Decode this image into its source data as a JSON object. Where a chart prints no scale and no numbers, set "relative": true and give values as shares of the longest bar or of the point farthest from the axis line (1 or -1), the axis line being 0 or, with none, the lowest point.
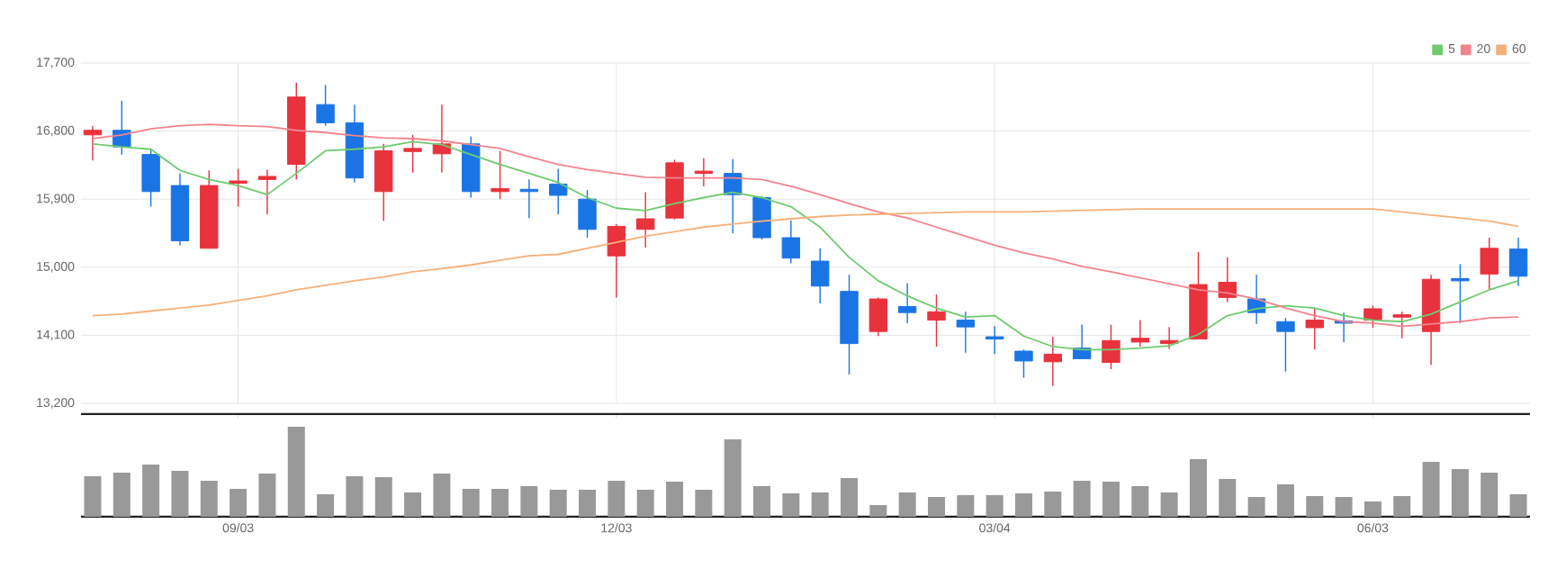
{
  "chart_data": [
    {
      "type": "candlestick",
      "ohlc": [
        [
          16750,
          16870,
          16410,
          16810
        ],
        [
          16810,
          17200,
          16490,
          16590
        ],
        [
          16490,
          16560,
          15800,
          16000
        ],
        [
          16080,
          16240,
          15290,
          15350
        ],
        [
          15250,
          16280,
          15250,
          16080
        ],
        [
          16110,
          16300,
          15800,
          16140
        ],
        [
          16160,
          16290,
          15700,
          16200
        ],
        [
          16360,
          17440,
          16160,
          17250
        ],
        [
          17150,
          17410,
          16870,
          16910
        ],
        [
          16910,
          17150,
          16120,
          16180
        ],
        [
          16000,
          16630,
          15610,
          16540
        ],
        [
          16530,
          16750,
          16250,
          16570
        ],
        [
          16500,
          17150,
          16250,
          16630
        ],
        [
          16630,
          16730,
          15920,
          16000
        ],
        [
          16000,
          16540,
          15900,
          16040
        ],
        [
          16030,
          16160,
          15650,
          16000
        ],
        [
          16100,
          16300,
          15700,
          15950
        ],
        [
          15900,
          16020,
          15390,
          15500
        ],
        [
          15150,
          15570,
          14600,
          15540
        ],
        [
          15500,
          15990,
          15260,
          15640
        ],
        [
          15650,
          16420,
          15630,
          16380
        ],
        [
          16240,
          16440,
          16070,
          16270
        ],
        [
          16240,
          16430,
          15450,
          15960
        ],
        [
          15920,
          15940,
          15370,
          15390
        ],
        [
          15390,
          15620,
          15050,
          15120
        ],
        [
          15080,
          15250,
          14520,
          14750
        ],
        [
          14680,
          14900,
          13580,
          13990
        ],
        [
          14150,
          14600,
          14090,
          14580
        ],
        [
          14480,
          14790,
          14260,
          14400
        ],
        [
          14300,
          14640,
          13950,
          14410
        ],
        [
          14300,
          14410,
          13870,
          14210
        ],
        [
          14080,
          14220,
          13850,
          14050
        ],
        [
          13890,
          13910,
          13540,
          13760
        ],
        [
          13750,
          14080,
          13430,
          13850
        ],
        [
          13930,
          14240,
          13790,
          13790
        ],
        [
          13740,
          14240,
          13650,
          14030
        ],
        [
          14010,
          14300,
          13950,
          14060
        ],
        [
          13990,
          14210,
          13920,
          14030
        ],
        [
          14050,
          15200,
          14050,
          14770
        ],
        [
          14600,
          15130,
          14540,
          14800
        ],
        [
          14580,
          14900,
          14250,
          14400
        ],
        [
          14280,
          14330,
          13620,
          14150
        ],
        [
          14200,
          14450,
          13910,
          14300
        ],
        [
          14290,
          14400,
          14010,
          14260
        ],
        [
          14300,
          14490,
          14200,
          14450
        ],
        [
          14340,
          14410,
          14060,
          14370
        ],
        [
          14150,
          14900,
          13710,
          14840
        ],
        [
          14850,
          15040,
          14260,
          14820
        ],
        [
          14910,
          15390,
          14700,
          15250
        ],
        [
          15240,
          15390,
          14750,
          14880
        ]
      ],
      "colors": [
        "#e8323c",
        "#1b74e4",
        "#1b74e4",
        "#1b74e4",
        "#e8323c",
        "#e8323c",
        "#e8323c",
        "#e8323c",
        "#1b74e4",
        "#1b74e4",
        "#e8323c",
        "#e8323c",
        "#e8323c",
        "#1b74e4",
        "#e8323c",
        "#1b74e4",
        "#1b74e4",
        "#1b74e4",
        "#e8323c",
        "#e8323c",
        "#e8323c",
        "#e8323c",
        "#1b74e4",
        "#1b74e4",
        "#1b74e4",
        "#1b74e4",
        "#1b74e4",
        "#e8323c",
        "#1b74e4",
        "#e8323c",
        "#1b74e4",
        "#1b74e4",
        "#1b74e4",
        "#e8323c",
        "#1b74e4",
        "#e8323c",
        "#e8323c",
        "#e8323c",
        "#e8323c",
        "#e8323c",
        "#1b74e4",
        "#1b74e4",
        "#e8323c",
        "#1b74e4",
        "#e8323c",
        "#e8323c",
        "#e8323c",
        "#1b74e4",
        "#e8323c",
        "#1b74e4"
      ],
      "series": [
        {
          "type": "line",
          "name": "5",
          "color": "#6fcb6f",
          "values": [
            16630,
            16590,
            16560,
            16280,
            16160,
            16080,
            15960,
            16240,
            16540,
            16560,
            16590,
            16660,
            16620,
            16490,
            16360,
            16240,
            16120,
            15920,
            15780,
            15750,
            15840,
            15920,
            15990,
            15920,
            15800,
            15530,
            15130,
            14820,
            14620,
            14460,
            14340,
            14360,
            14090,
            13950,
            13910,
            13910,
            13930,
            13960,
            14110,
            14360,
            14450,
            14490,
            14460,
            14360,
            14300,
            14280,
            14380,
            14540,
            14700,
            14820
          ]
        },
        {
          "type": "line",
          "name": "20",
          "color": "#f2848e",
          "values": [
            16700,
            16750,
            16830,
            16870,
            16890,
            16870,
            16860,
            16810,
            16780,
            16740,
            16710,
            16700,
            16670,
            16620,
            16570,
            16460,
            16360,
            16290,
            16240,
            16190,
            16180,
            16180,
            16180,
            16160,
            16070,
            15960,
            15840,
            15730,
            15650,
            15530,
            15410,
            15290,
            15190,
            15110,
            15010,
            14940,
            14860,
            14780,
            14700,
            14660,
            14580,
            14460,
            14360,
            14280,
            14260,
            14220,
            14250,
            14280,
            14330,
            14340
          ]
        },
        {
          "type": "line",
          "name": "60",
          "color": "#f6b07a",
          "values": [
            14360,
            14380,
            14420,
            14460,
            14500,
            14560,
            14620,
            14700,
            14760,
            14820,
            14870,
            14940,
            14980,
            15030,
            15090,
            15150,
            15170,
            15250,
            15330,
            15410,
            15470,
            15530,
            15570,
            15610,
            15640,
            15670,
            15690,
            15700,
            15710,
            15720,
            15730,
            15730,
            15730,
            15740,
            15750,
            15760,
            15770,
            15770,
            15770,
            15770,
            15770,
            15770,
            15770,
            15770,
            15770,
            15730,
            15690,
            15650,
            15610,
            15540
          ]
        }
      ],
      "ylim": [
        13200,
        17700
      ],
      "yticks": [
        {
          "value": 13200,
          "label": "13,200"
        },
        {
          "value": 14100,
          "label": "14,100"
        },
        {
          "value": 15000,
          "label": "15,000"
        },
        {
          "value": 15900,
          "label": "15,900"
        },
        {
          "value": 16800,
          "label": "16,800"
        },
        {
          "value": 17700,
          "label": "17,700"
        }
      ],
      "grid": true,
      "legend": "top right",
      "tick_labels": "y"
    },
    {
      "type": "bar",
      "categories": [
        null,
        null,
        null,
        null,
        null,
        "09/03",
        null,
        null,
        null,
        null,
        null,
        null,
        null,
        null,
        null,
        null,
        null,
        null,
        "12/03",
        null,
        null,
        null,
        null,
        null,
        null,
        null,
        null,
        null,
        null,
        null,
        null,
        "03/04",
        null,
        null,
        null,
        null,
        null,
        null,
        null,
        null,
        null,
        null,
        null,
        null,
        "06/03",
        null,
        null,
        null,
        null,
        null
      ],
      "values": [
        0.45,
        0.49,
        0.58,
        0.51,
        0.4,
        0.31,
        0.48,
        1,
        0.25,
        0.45,
        0.44,
        0.27,
        0.48,
        0.31,
        0.31,
        0.34,
        0.3,
        0.3,
        0.4,
        0.3,
        0.39,
        0.3,
        0.86,
        0.34,
        0.26,
        0.27,
        0.43,
        0.13,
        0.27,
        0.22,
        0.24,
        0.24,
        0.26,
        0.28,
        0.4,
        0.39,
        0.34,
        0.27,
        0.64,
        0.42,
        0.22,
        0.36,
        0.23,
        0.22,
        0.17,
        0.23,
        0.61,
        0.53,
        0.49,
        0.25
      ],
      "color": "#999999",
      "relative": true,
      "tick_labels": "x"
    }
  ]
}
